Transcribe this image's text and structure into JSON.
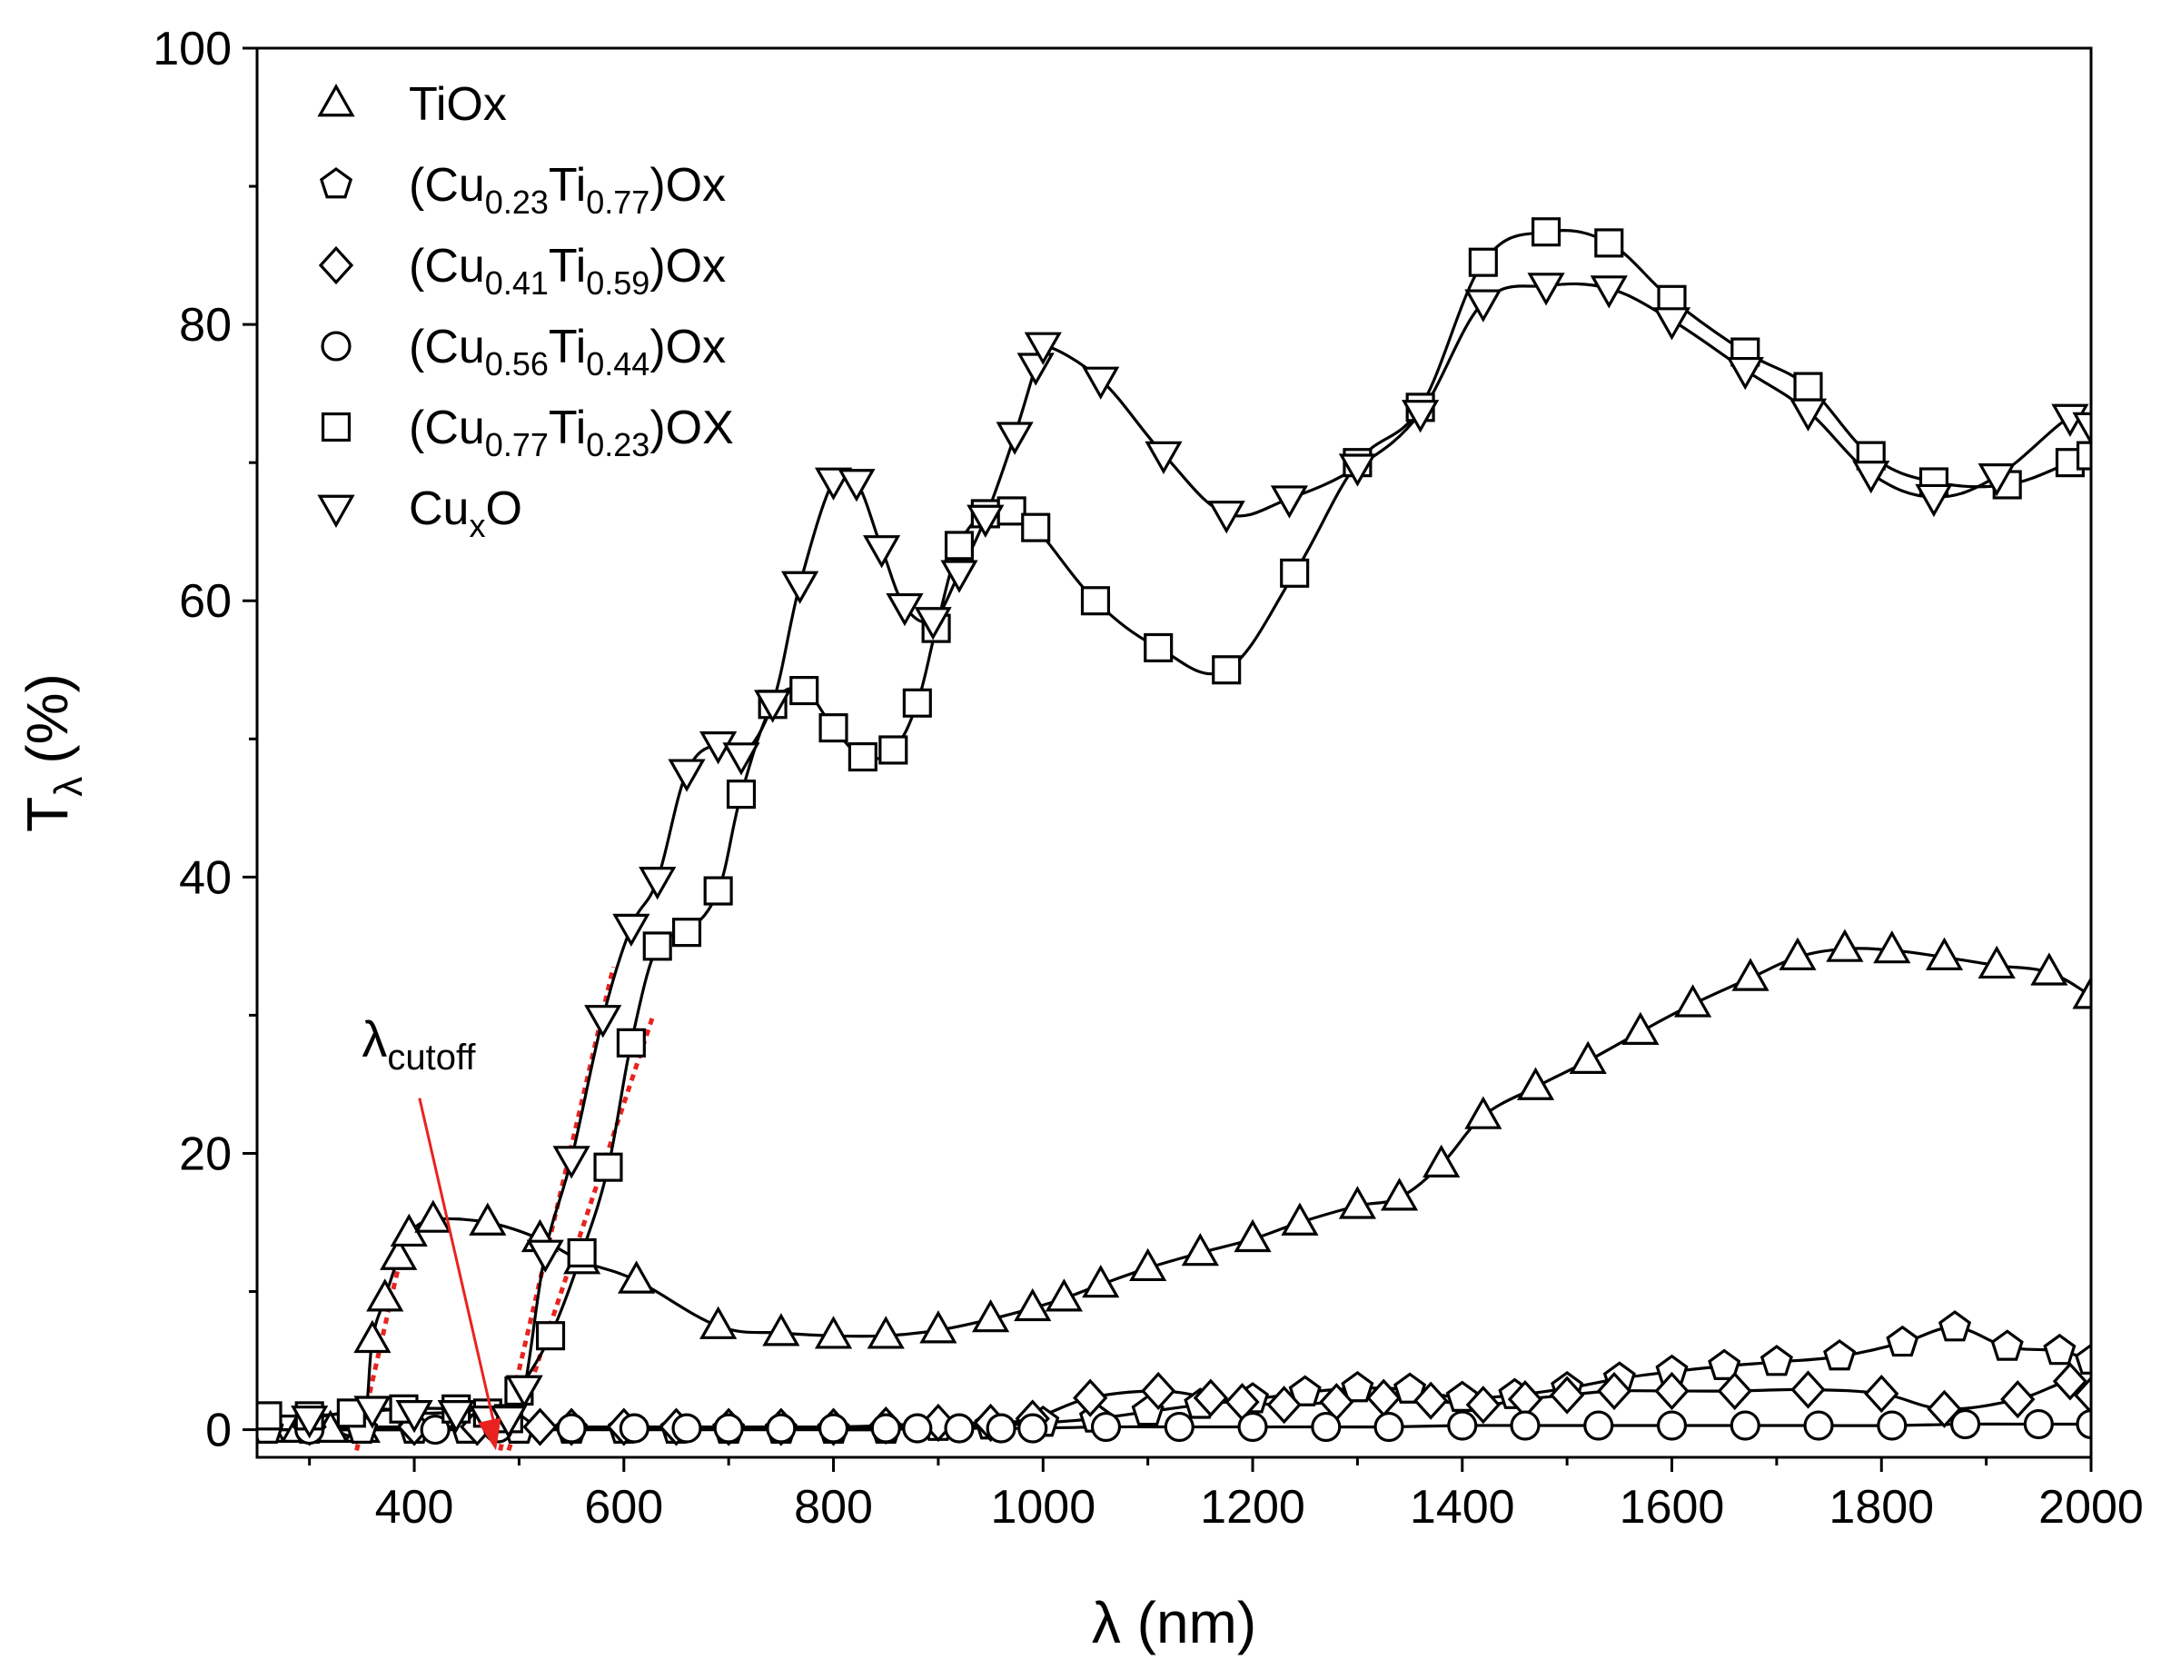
{
  "chart_data": {
    "type": "line",
    "title": "",
    "xlabel": "λ (nm)",
    "xlabel_symbol": "λ",
    "xlabel_unit": "(nm)",
    "ylabel": "Tλ (%)",
    "ylabel_main": "T",
    "ylabel_sub": "λ",
    "ylabel_unit": "(%)",
    "xlim": [
      250,
      2000
    ],
    "ylim": [
      -2,
      100
    ],
    "xticks": [
      400,
      600,
      800,
      1000,
      1200,
      1400,
      1600,
      1800,
      2000
    ],
    "yticks": [
      0,
      20,
      40,
      60,
      80,
      100
    ],
    "legend_position": "top-left",
    "series": [
      {
        "name": "TiOx",
        "label_parts": [
          [
            "TiOx",
            ""
          ]
        ],
        "marker": "triangle-up",
        "x": [
          260,
          290,
          320,
          350,
          360,
          372,
          385,
          395,
          418,
          470,
          520,
          560,
          612,
          690,
          750,
          800,
          850,
          900,
          950,
          990,
          1020,
          1055,
          1100,
          1150,
          1200,
          1245,
          1300,
          1340,
          1380,
          1420,
          1470,
          1520,
          1570,
          1620,
          1675,
          1720,
          1765,
          1810,
          1860,
          1910,
          1960,
          2000
        ],
        "y": [
          0,
          0,
          0,
          0,
          6.5,
          9.5,
          12.5,
          14.2,
          15.2,
          15.0,
          13.8,
          12.2,
          10.8,
          7.5,
          7.0,
          6.8,
          6.8,
          7.2,
          8.0,
          8.8,
          9.5,
          10.5,
          11.7,
          12.8,
          13.8,
          15.0,
          16.2,
          16.8,
          19.2,
          22.7,
          24.8,
          26.7,
          28.8,
          30.8,
          32.7,
          34.2,
          34.8,
          34.7,
          34.2,
          33.6,
          33.1,
          31.4
        ]
      },
      {
        "name": "(Cu0.23Ti0.77)Ox",
        "label_parts": [
          [
            "(Cu",
            ""
          ],
          [
            "0.23",
            "sub"
          ],
          [
            "Ti",
            ""
          ],
          [
            "0.77",
            "sub"
          ],
          [
            ")Ox",
            ""
          ]
        ],
        "marker": "pentagon",
        "x": [
          260,
          300,
          350,
          400,
          450,
          500,
          550,
          600,
          650,
          700,
          750,
          800,
          850,
          900,
          950,
          1000,
          1050,
          1100,
          1150,
          1200,
          1250,
          1300,
          1350,
          1400,
          1450,
          1500,
          1550,
          1600,
          1650,
          1700,
          1760,
          1820,
          1870,
          1920,
          1970,
          2000
        ],
        "y": [
          0,
          0,
          0,
          0,
          0,
          0,
          0,
          0,
          0,
          0,
          0,
          0,
          0,
          0.2,
          0.3,
          0.5,
          0.8,
          1.3,
          1.8,
          2.2,
          2.7,
          3.0,
          2.9,
          2.3,
          2.5,
          3.0,
          3.7,
          4.2,
          4.6,
          4.9,
          5.3,
          6.3,
          7.4,
          6.0,
          5.7,
          5.0
        ]
      },
      {
        "name": "(Cu0.41Ti0.59)Ox",
        "label_parts": [
          [
            "(Cu",
            ""
          ],
          [
            "0.41",
            "sub"
          ],
          [
            "Ti",
            ""
          ],
          [
            "0.59",
            "sub"
          ],
          [
            ")Ox",
            ""
          ]
        ],
        "marker": "diamond",
        "x": [
          300,
          400,
          460,
          520,
          550,
          600,
          650,
          700,
          750,
          800,
          850,
          900,
          950,
          990,
          1045,
          1110,
          1160,
          1190,
          1230,
          1280,
          1325,
          1370,
          1420,
          1460,
          1500,
          1545,
          1600,
          1660,
          1730,
          1800,
          1860,
          1930,
          1980,
          2000
        ],
        "y": [
          0.2,
          0.2,
          0.2,
          0.2,
          0.2,
          0.2,
          0.2,
          0.2,
          0.2,
          0.2,
          0.3,
          0.5,
          0.5,
          0.8,
          2.3,
          2.8,
          2.3,
          2.0,
          1.8,
          2.0,
          2.3,
          2.1,
          1.8,
          2.2,
          2.5,
          2.8,
          2.8,
          2.8,
          2.9,
          2.6,
          1.5,
          2.2,
          3.5,
          2.5
        ]
      },
      {
        "name": "(Cu0.56Ti0.44)Ox",
        "label_parts": [
          [
            "(Cu",
            ""
          ],
          [
            "0.56",
            "sub"
          ],
          [
            "Ti",
            ""
          ],
          [
            "0.44",
            "sub"
          ],
          [
            ")Ox",
            ""
          ]
        ],
        "marker": "circle",
        "x": [
          300,
          420,
          480,
          550,
          610,
          660,
          700,
          750,
          800,
          850,
          880,
          920,
          960,
          990,
          1060,
          1130,
          1200,
          1270,
          1330,
          1400,
          1460,
          1530,
          1600,
          1670,
          1740,
          1810,
          1880,
          1950,
          2000
        ],
        "y": [
          0,
          0,
          0.1,
          0.1,
          0.1,
          0.1,
          0.1,
          0.1,
          0.1,
          0.1,
          0.1,
          0.1,
          0.1,
          0.1,
          0.2,
          0.2,
          0.2,
          0.2,
          0.2,
          0.3,
          0.3,
          0.3,
          0.3,
          0.3,
          0.3,
          0.3,
          0.4,
          0.4,
          0.4
        ]
      },
      {
        "name": "(Cu0.77Ti0.23)OX",
        "label_parts": [
          [
            "(Cu",
            ""
          ],
          [
            "0.77",
            "sub"
          ],
          [
            "Ti",
            ""
          ],
          [
            "0.23",
            "sub"
          ],
          [
            ")OX",
            ""
          ]
        ],
        "marker": "square",
        "x": [
          260,
          300,
          340,
          390,
          440,
          470,
          490,
          500,
          530,
          560,
          585,
          607,
          632,
          660,
          690,
          712,
          742,
          772,
          800,
          828,
          857,
          880,
          898,
          920,
          945,
          970,
          993,
          1050,
          1110,
          1175,
          1240,
          1300,
          1360,
          1420,
          1480,
          1540,
          1600,
          1670,
          1730,
          1790,
          1850,
          1920,
          1980,
          2000
        ],
        "y": [
          1.0,
          1.0,
          1.2,
          1.5,
          1.5,
          1.2,
          0.8,
          2.8,
          6.8,
          12.8,
          19.0,
          28.0,
          35.0,
          36.0,
          39.0,
          46.0,
          52.5,
          53.5,
          50.8,
          48.7,
          49.2,
          52.6,
          58.0,
          64.0,
          66.3,
          66.5,
          65.3,
          60.0,
          56.6,
          55.0,
          62.0,
          70.0,
          74.0,
          84.5,
          86.7,
          85.9,
          81.8,
          78.0,
          75.5,
          70.5,
          68.6,
          68.4,
          70.0,
          70.5
        ]
      },
      {
        "name": "CuxO",
        "label_parts": [
          [
            "Cu",
            ""
          ],
          [
            "x",
            "sub"
          ],
          [
            "O",
            ""
          ]
        ],
        "marker": "triangle-down",
        "x": [
          300,
          360,
          400,
          440,
          470,
          490,
          505,
          525,
          550,
          580,
          607,
          632,
          660,
          690,
          712,
          742,
          768,
          800,
          822,
          846,
          868,
          895,
          920,
          945,
          973,
          993,
          1000,
          1055,
          1115,
          1175,
          1235,
          1300,
          1360,
          1420,
          1480,
          1540,
          1600,
          1670,
          1730,
          1790,
          1850,
          1910,
          1980,
          2000
        ],
        "y": [
          0.8,
          1.5,
          1.2,
          1.2,
          0.8,
          0.8,
          3.0,
          12.8,
          19.6,
          29.8,
          36.4,
          39.8,
          47.6,
          49.6,
          48.8,
          52.6,
          61.2,
          68.7,
          68.6,
          63.8,
          59.6,
          58.6,
          62.0,
          66.0,
          72.0,
          77.0,
          78.5,
          76.0,
          70.6,
          66.3,
          67.4,
          69.7,
          73.6,
          81.6,
          82.8,
          82.6,
          80.3,
          76.7,
          73.7,
          69.2,
          67.5,
          69.0,
          73.3,
          72.7
        ]
      }
    ],
    "fit_lines": [
      {
        "name": "TiOx edge fit",
        "x1": 345,
        "y1": -1.5,
        "x2": 390,
        "y2": 13.5
      },
      {
        "name": "CuxO edge fit",
        "x1": 482,
        "y1": -1.5,
        "x2": 590,
        "y2": 33.5
      },
      {
        "name": "Cu0.77Ti0.23 edge fit",
        "x1": 490,
        "y1": -1.5,
        "x2": 628,
        "y2": 30.0
      }
    ],
    "annotation": {
      "label_main": "λ",
      "label_sub": "cutoff",
      "text_x": 350,
      "text_y": 27,
      "arrow_from_x": 405,
      "arrow_from_y": 24,
      "arrow_to_x": 478,
      "arrow_to_y": -1.5
    }
  }
}
